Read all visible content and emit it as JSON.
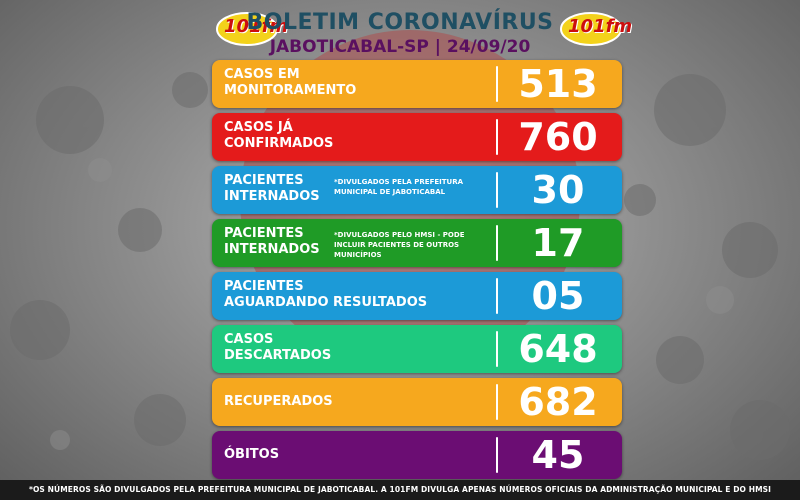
{
  "header": {
    "title": "BOLETIM CORONAVÍRUS",
    "subtitle": "JABOTICABAL-SP | 24/09/20",
    "logo_text": "101fm"
  },
  "rows": [
    {
      "label": "CASOS EM\nMONITORAMENTO",
      "note": "",
      "value": "513",
      "color": "#f6a81e"
    },
    {
      "label": "CASOS JÁ\nCONFIRMADOS",
      "note": "",
      "value": "760",
      "color": "#e41b1b"
    },
    {
      "label": "PACIENTES\nINTERNADOS",
      "note": "*DIVULGADOS PELA PREFEITURA MUNICIPAL DE JABOTICABAL",
      "value": "30",
      "color": "#1c9ad7"
    },
    {
      "label": "PACIENTES\nINTERNADOS",
      "note": "*DIVULGADOS PELO HMSI - PODE INCLUIR PACIENTES DE OUTROS MUNICÍPIOS",
      "value": "17",
      "color": "#1f9b26"
    },
    {
      "label": "PACIENTES\nAGUARDANDO RESULTADOS",
      "note": "",
      "value": "05",
      "color": "#1c9ad7"
    },
    {
      "label": "CASOS\nDESCARTADOS",
      "note": "",
      "value": "648",
      "color": "#1ec97f"
    },
    {
      "label": "RECUPERADOS",
      "note": "",
      "value": "682",
      "color": "#f6a81e"
    },
    {
      "label": "ÓBITOS",
      "note": "",
      "value": "45",
      "color": "#6b0d73"
    }
  ],
  "footer": {
    "text": "*OS NÚMEROS SÃO DIVULGADOS PELA PREFEITURA MUNICIPAL DE JABOTICABAL. A 101FM DIVULGA APENAS NÚMEROS OFICIAIS DA ADMINISTRAÇÃO MUNICIPAL E DO HMSI"
  }
}
